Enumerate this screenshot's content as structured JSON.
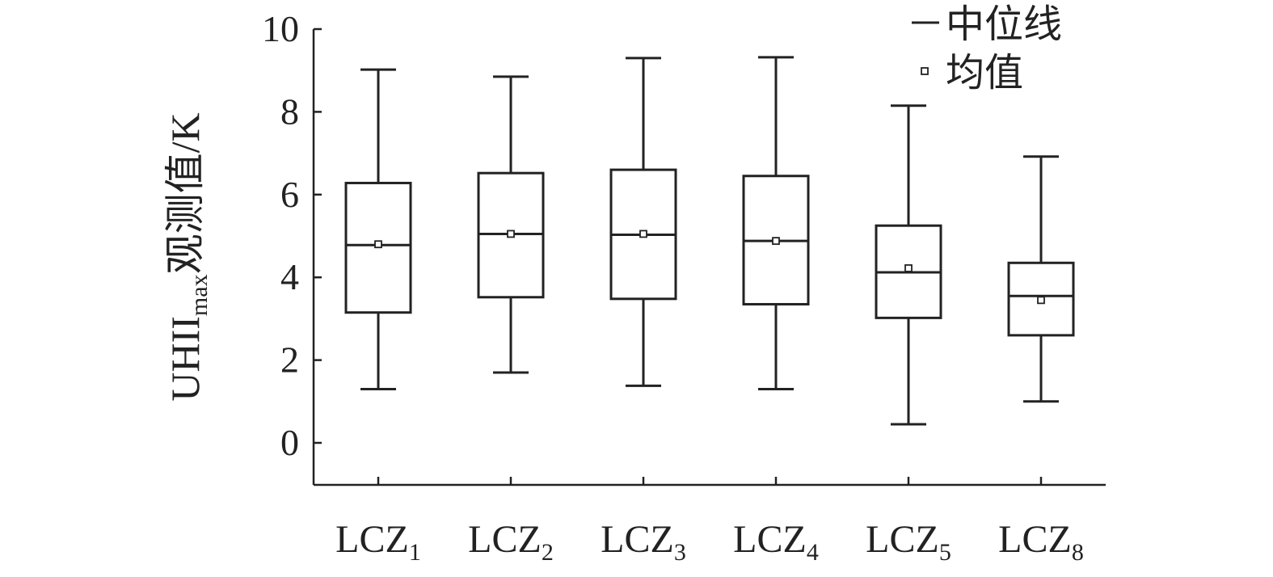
{
  "chart_data": {
    "type": "box",
    "ylabel": {
      "prefix": "UHII",
      "subscript": "max",
      "suffix": "观测值/K"
    },
    "ylim": [
      -1,
      10
    ],
    "yticks": [
      0,
      2,
      4,
      6,
      8,
      10
    ],
    "categories": [
      {
        "base": "LCZ",
        "sub": "1"
      },
      {
        "base": "LCZ",
        "sub": "2"
      },
      {
        "base": "LCZ",
        "sub": "3"
      },
      {
        "base": "LCZ",
        "sub": "4"
      },
      {
        "base": "LCZ",
        "sub": "5"
      },
      {
        "base": "LCZ",
        "sub": "8"
      }
    ],
    "boxes": [
      {
        "min": 1.3,
        "q1": 3.15,
        "median": 4.78,
        "mean": 4.8,
        "q3": 6.28,
        "max": 9.02
      },
      {
        "min": 1.7,
        "q1": 3.52,
        "median": 5.05,
        "mean": 5.05,
        "q3": 6.52,
        "max": 8.85
      },
      {
        "min": 1.38,
        "q1": 3.48,
        "median": 5.03,
        "mean": 5.05,
        "q3": 6.6,
        "max": 9.3
      },
      {
        "min": 1.3,
        "q1": 3.35,
        "median": 4.88,
        "mean": 4.88,
        "q3": 6.45,
        "max": 9.32
      },
      {
        "min": 0.45,
        "q1": 3.02,
        "median": 4.12,
        "mean": 4.22,
        "q3": 5.25,
        "max": 8.15
      },
      {
        "min": 1.0,
        "q1": 2.6,
        "median": 3.55,
        "mean": 3.45,
        "q3": 4.35,
        "max": 6.92
      }
    ],
    "legend": {
      "position": "top-right",
      "items": [
        {
          "symbol": "line",
          "label": "中位线"
        },
        {
          "symbol": "square",
          "label": "均值"
        }
      ]
    }
  }
}
